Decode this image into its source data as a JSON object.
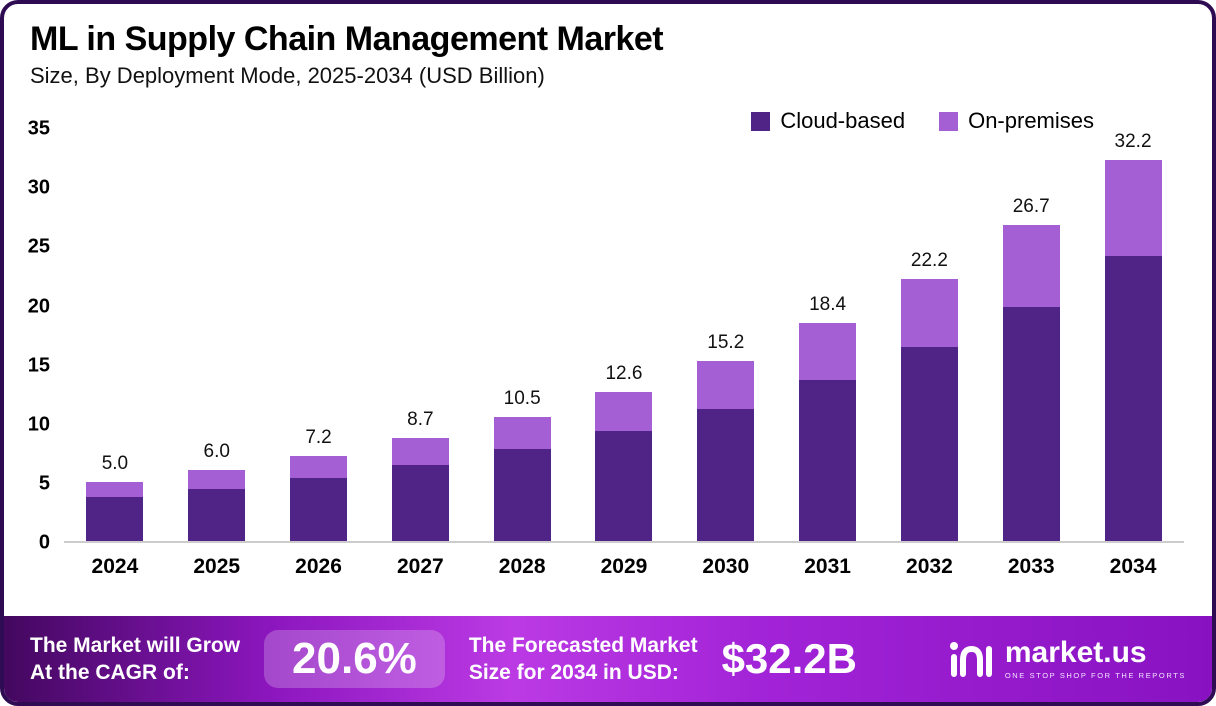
{
  "chart_data": {
    "type": "bar",
    "stacked": true,
    "title": "ML in Supply Chain Management Market",
    "subtitle": "Size, By Deployment Mode, 2025-2034 (USD Billion)",
    "categories": [
      "2024",
      "2025",
      "2026",
      "2027",
      "2028",
      "2029",
      "2030",
      "2031",
      "2032",
      "2033",
      "2034"
    ],
    "series": [
      {
        "name": "Cloud-based",
        "color": "#4f2486",
        "values": [
          3.7,
          4.4,
          5.3,
          6.4,
          7.8,
          9.3,
          11.2,
          13.6,
          16.4,
          19.8,
          24.1
        ]
      },
      {
        "name": "On-premises",
        "color": "#a55fd5",
        "values": [
          1.3,
          1.6,
          1.9,
          2.3,
          2.7,
          3.3,
          4.0,
          4.8,
          5.8,
          6.9,
          8.1
        ]
      }
    ],
    "totals": [
      5.0,
      6.0,
      7.2,
      8.7,
      10.5,
      12.6,
      15.2,
      18.4,
      22.2,
      26.7,
      32.2
    ],
    "total_labels": [
      "5.0",
      "6.0",
      "7.2",
      "8.7",
      "10.5",
      "12.6",
      "15.2",
      "18.4",
      "22.2",
      "26.7",
      "32.2"
    ],
    "ylim": [
      0,
      35
    ],
    "yticks": [
      0,
      5,
      10,
      15,
      20,
      25,
      30,
      35
    ],
    "grid": false,
    "legend_position": "top-right",
    "legend": [
      {
        "label": "Cloud-based",
        "color": "#4f2486"
      },
      {
        "label": "On-premises",
        "color": "#a55fd5"
      }
    ]
  },
  "footer": {
    "cagr_label_line1": "The Market will Grow",
    "cagr_label_line2": "At the CAGR of:",
    "cagr_value": "20.6%",
    "forecast_label_line1": "The Forecasted Market",
    "forecast_label_line2": "Size for 2034 in USD:",
    "forecast_value": "$32.2B",
    "brand": "market.us",
    "brand_tagline": "One Stop Shop for the Reports"
  }
}
